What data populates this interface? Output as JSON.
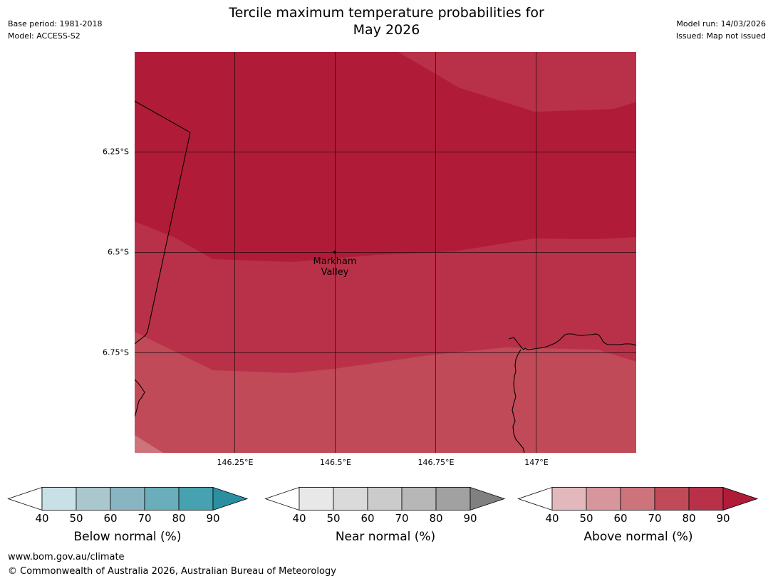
{
  "header": {
    "title_line1": "Tercile maximum temperature probabilities for",
    "title_line2": "May 2026",
    "base_period": "Base period: 1981-2018",
    "model": "Model: ACCESS-S2",
    "model_run": "Model run: 14/03/2026",
    "issued": "Issued: Map not issued"
  },
  "map": {
    "region_category": "Above normal",
    "lat_ticks": [
      "6.25°S",
      "6.5°S",
      "6.75°S"
    ],
    "lon_ticks": [
      "146.25°E",
      "146.5°E",
      "146.75°E",
      "147°E"
    ],
    "place": {
      "name_line1": "Markham",
      "name_line2": "Valley"
    },
    "colors": {
      "above_90": "#b01c38",
      "above_80": "#b93148",
      "above_70": "#c04a57",
      "above_60": "#cd737c",
      "coast": "#000000",
      "grid": "#000000"
    }
  },
  "legends": [
    {
      "label": "Below normal (%)",
      "ticks": [
        "40",
        "50",
        "60",
        "70",
        "80",
        "90"
      ],
      "low_color": "#ffffff",
      "colors": [
        "#c9e1e6",
        "#a9c7cd",
        "#89b5c2",
        "#6aadbb",
        "#46a1b0"
      ],
      "high_color": "#2a8f9f"
    },
    {
      "label": "Near normal (%)",
      "ticks": [
        "40",
        "50",
        "60",
        "70",
        "80",
        "90"
      ],
      "low_color": "#ffffff",
      "colors": [
        "#e8e8e8",
        "#dadada",
        "#cbcbcb",
        "#b7b7b7",
        "#a1a1a1"
      ],
      "high_color": "#808080"
    },
    {
      "label": "Above normal (%)",
      "ticks": [
        "40",
        "50",
        "60",
        "70",
        "80",
        "90"
      ],
      "low_color": "#ffffff",
      "colors": [
        "#e2b8bc",
        "#d7959c",
        "#cd737c",
        "#c04a57",
        "#b93148"
      ],
      "high_color": "#b01c38"
    }
  ],
  "footer": {
    "url": "www.bom.gov.au/climate",
    "copyright": "© Commonwealth of Australia 2026, Australian Bureau of Meteorology"
  }
}
